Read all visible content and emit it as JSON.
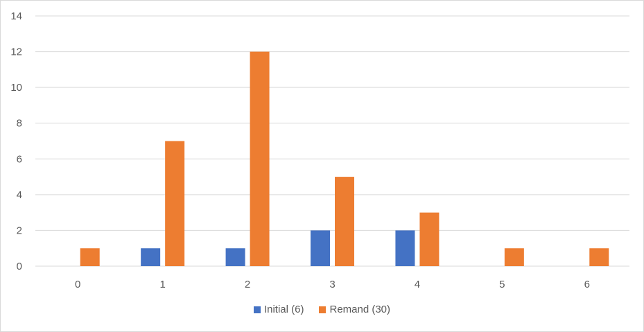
{
  "chart_data": {
    "type": "bar",
    "categories": [
      "0",
      "1",
      "2",
      "3",
      "4",
      "5",
      "6"
    ],
    "series": [
      {
        "name": "Initial (6)",
        "color": "#4472C4",
        "values": [
          0,
          1,
          1,
          2,
          2,
          0,
          0
        ]
      },
      {
        "name": "Remand (30)",
        "color": "#ED7D31",
        "values": [
          1,
          7,
          12,
          5,
          3,
          1,
          1
        ]
      }
    ],
    "ylim": [
      0,
      14
    ],
    "yticks": [
      0,
      2,
      4,
      6,
      8,
      10,
      12,
      14
    ],
    "grid": true,
    "legend_position": "bottom"
  }
}
